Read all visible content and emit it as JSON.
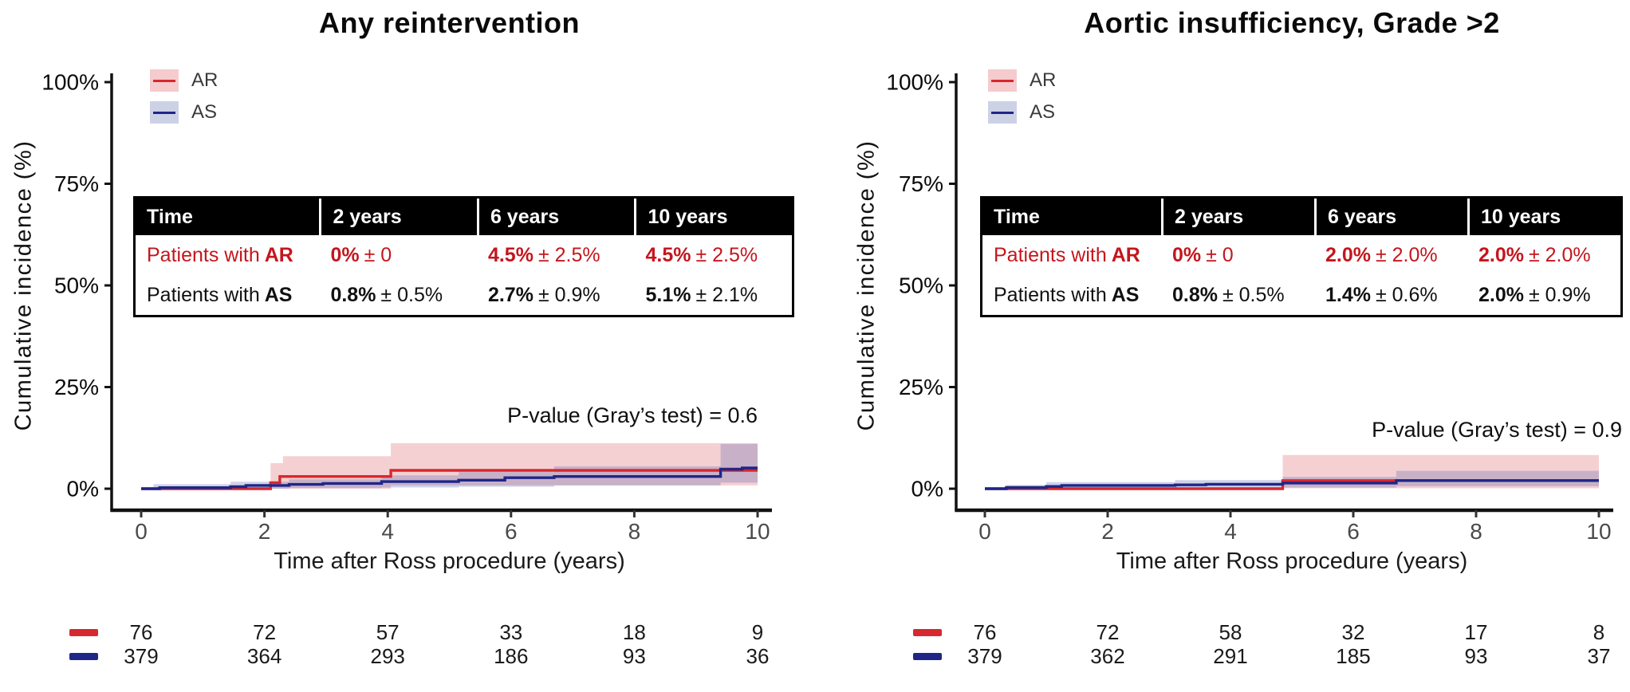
{
  "colors": {
    "ar_line": "#D7282F",
    "ar_band": "rgba(217,83,89,0.27)",
    "as_line": "#1F2687",
    "as_band": "rgba(83,96,176,0.28)",
    "legend_ar_fill": "#F5CBCE",
    "legend_as_fill": "#CCD1E6",
    "table_header_bg": "#000000",
    "ar_text": "#C4161D",
    "as_text": "#1F2687"
  },
  "panels": [
    {
      "title": "Any reintervention",
      "y_axis_label": "Cumulative incidence (%)",
      "x_axis_label": "Time after Ross procedure (years)",
      "p_value_text": "P-value (Gray’s test) = 0.6",
      "legend": [
        {
          "label": "AR"
        },
        {
          "label": "AS"
        }
      ],
      "inset_table": {
        "headers": [
          "Time",
          "2 years",
          "6 years",
          "10 years"
        ],
        "rows": [
          {
            "label_prefix": "Patients with",
            "label_group": "AR",
            "cells": [
              {
                "main": "0%",
                "pm": "± 0"
              },
              {
                "main": "4.5%",
                "pm": "± 2.5%"
              },
              {
                "main": "4.5%",
                "pm": "± 2.5%"
              }
            ]
          },
          {
            "label_prefix": "Patients with",
            "label_group": "AS",
            "cells": [
              {
                "main": "0.8%",
                "pm": "± 0.5%"
              },
              {
                "main": "2.7%",
                "pm": "± 0.9%"
              },
              {
                "main": "5.1%",
                "pm": "± 2.1%"
              }
            ]
          }
        ]
      }
    },
    {
      "title": "Aortic insufficiency, Grade >2",
      "y_axis_label": "Cumulative incidence (%)",
      "x_axis_label": "Time after Ross procedure (years)",
      "p_value_text": "P-value (Gray’s test) = 0.9",
      "legend": [
        {
          "label": "AR"
        },
        {
          "label": "AS"
        }
      ],
      "inset_table": {
        "headers": [
          "Time",
          "2 years",
          "6 years",
          "10 years"
        ],
        "rows": [
          {
            "label_prefix": "Patients with",
            "label_group": "AR",
            "cells": [
              {
                "main": "0%",
                "pm": "± 0"
              },
              {
                "main": "2.0%",
                "pm": "± 2.0%"
              },
              {
                "main": "2.0%",
                "pm": "± 2.0%"
              }
            ]
          },
          {
            "label_prefix": "Patients with",
            "label_group": "AS",
            "cells": [
              {
                "main": "0.8%",
                "pm": "± 0.5%"
              },
              {
                "main": "1.4%",
                "pm": "± 0.6%"
              },
              {
                "main": "2.0%",
                "pm": "± 0.9%"
              }
            ]
          }
        ]
      }
    }
  ],
  "chart_data": [
    {
      "type": "line",
      "title": "Any reintervention",
      "xlabel": "Time after Ross procedure (years)",
      "ylabel": "Cumulative incidence (%)",
      "xlim": [
        0,
        10
      ],
      "ylim": [
        0,
        100
      ],
      "x_ticks": [
        0,
        2,
        4,
        6,
        8,
        10
      ],
      "y_ticks": [
        {
          "v": 0,
          "label": "0%"
        },
        {
          "v": 25,
          "label": "25%"
        },
        {
          "v": 50,
          "label": "50%"
        },
        {
          "v": 75,
          "label": "75%"
        },
        {
          "v": 100,
          "label": "100%"
        }
      ],
      "p_value": 0.6,
      "legend_position": "top-left",
      "grid": false,
      "series": [
        {
          "name": "AR",
          "color_key": "ar",
          "steps": [
            [
              2.1,
              1.5
            ],
            [
              2.25,
              3.0
            ],
            [
              4.05,
              4.5
            ]
          ],
          "band": [
            [
              2.1,
              0,
              6.3
            ],
            [
              2.3,
              0,
              8.0
            ],
            [
              4.05,
              0.8,
              11.2
            ]
          ]
        },
        {
          "name": "AS",
          "color_key": "as",
          "steps": [
            [
              0.3,
              0.25
            ],
            [
              1.45,
              0.5
            ],
            [
              1.7,
              0.8
            ],
            [
              2.4,
              1.05
            ],
            [
              2.95,
              1.3
            ],
            [
              3.9,
              1.75
            ],
            [
              5.15,
              2.1
            ],
            [
              5.9,
              2.7
            ],
            [
              6.7,
              3.0
            ],
            [
              9.4,
              4.8
            ],
            [
              9.75,
              5.1
            ]
          ],
          "band": [
            [
              0.2,
              0,
              1.1
            ],
            [
              1.45,
              0,
              1.7
            ],
            [
              2.4,
              0.15,
              2.3
            ],
            [
              3.9,
              0.3,
              3.3
            ],
            [
              5.15,
              0.5,
              4.1
            ],
            [
              6.7,
              0.8,
              5.5
            ],
            [
              9.4,
              1.5,
              11.0
            ]
          ]
        }
      ],
      "estimates": {
        "times_years": [
          2,
          6,
          10
        ],
        "AR": [
          "0% ± 0",
          "4.5% ± 2.5%",
          "4.5% ± 2.5%"
        ],
        "AS": [
          "0.8% ± 0.5%",
          "2.7% ± 0.9%",
          "5.1% ± 2.1%"
        ]
      },
      "numbers_at_risk": {
        "times": [
          0,
          2,
          4,
          6,
          8,
          10
        ],
        "rows": [
          {
            "group": "AR",
            "values": [
              76,
              72,
              57,
              33,
              18,
              9
            ]
          },
          {
            "group": "AS",
            "values": [
              379,
              364,
              293,
              186,
              93,
              36
            ]
          }
        ]
      }
    },
    {
      "type": "line",
      "title": "Aortic insufficiency, Grade >2",
      "xlabel": "Time after Ross procedure (years)",
      "ylabel": "Cumulative incidence (%)",
      "xlim": [
        0,
        10
      ],
      "ylim": [
        0,
        100
      ],
      "x_ticks": [
        0,
        2,
        4,
        6,
        8,
        10
      ],
      "y_ticks": [
        {
          "v": 0,
          "label": "0%"
        },
        {
          "v": 25,
          "label": "25%"
        },
        {
          "v": 50,
          "label": "50%"
        },
        {
          "v": 75,
          "label": "75%"
        },
        {
          "v": 100,
          "label": "100%"
        }
      ],
      "p_value": 0.9,
      "legend_position": "top-left",
      "grid": false,
      "series": [
        {
          "name": "AR",
          "color_key": "ar",
          "steps": [
            [
              4.85,
              2.0
            ]
          ],
          "band": [
            [
              4.85,
              0.1,
              8.3
            ]
          ]
        },
        {
          "name": "AS",
          "color_key": "as",
          "steps": [
            [
              0.35,
              0.3
            ],
            [
              1.0,
              0.55
            ],
            [
              1.25,
              0.8
            ],
            [
              3.1,
              0.95
            ],
            [
              3.6,
              1.1
            ],
            [
              4.85,
              1.4
            ],
            [
              6.7,
              2.0
            ]
          ],
          "band": [
            [
              0.35,
              0,
              0.9
            ],
            [
              1.0,
              0,
              1.6
            ],
            [
              3.1,
              0.1,
              2.1
            ],
            [
              4.85,
              0.3,
              2.9
            ],
            [
              6.7,
              0.6,
              4.4
            ]
          ]
        }
      ],
      "estimates": {
        "times_years": [
          2,
          6,
          10
        ],
        "AR": [
          "0% ± 0",
          "2.0% ± 2.0%",
          "2.0% ± 2.0%"
        ],
        "AS": [
          "0.8% ± 0.5%",
          "1.4% ± 0.6%",
          "2.0% ± 0.9%"
        ]
      },
      "numbers_at_risk": {
        "times": [
          0,
          2,
          4,
          6,
          8,
          10
        ],
        "rows": [
          {
            "group": "AR",
            "values": [
              76,
              72,
              58,
              32,
              17,
              8
            ]
          },
          {
            "group": "AS",
            "values": [
              379,
              362,
              291,
              185,
              93,
              37
            ]
          }
        ]
      }
    }
  ]
}
